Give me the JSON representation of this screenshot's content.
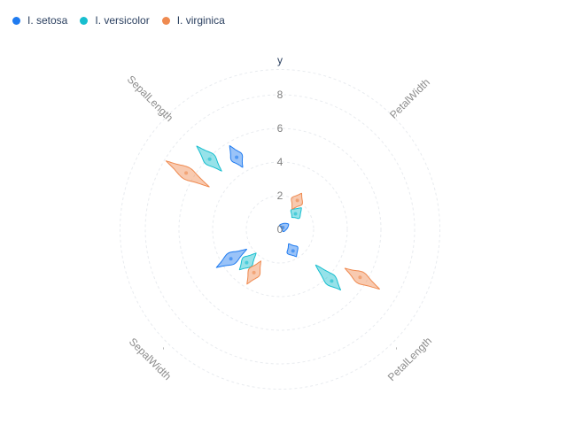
{
  "chart_data": {
    "type": "polar-violin",
    "title": "",
    "radial_axis": {
      "title": "y",
      "range": [
        0,
        8
      ],
      "ticks": [
        0,
        2,
        4,
        6,
        8
      ],
      "grid": true
    },
    "angular_axis": {
      "categories": [
        "PetalWidth",
        "PetalLength",
        "SepalWidth",
        "SepalLength"
      ]
    },
    "legend": {
      "placement": "top-left",
      "orientation": "horizontal"
    },
    "series": [
      {
        "name": "I. setosa",
        "color": "#1f7bf0",
        "values": {
          "PetalWidth": {
            "min": 0.1,
            "q1": 0.2,
            "median": 0.2,
            "q3": 0.3,
            "max": 0.6
          },
          "PetalLength": {
            "min": 1.0,
            "q1": 1.4,
            "median": 1.5,
            "q3": 1.6,
            "max": 1.9
          },
          "SepalWidth": {
            "min": 2.3,
            "q1": 3.2,
            "median": 3.4,
            "q3": 3.7,
            "max": 4.4
          },
          "SepalLength": {
            "min": 4.3,
            "q1": 4.8,
            "median": 5.0,
            "q3": 5.2,
            "max": 5.8
          }
        }
      },
      {
        "name": "I. versicolor",
        "color": "#17becf",
        "values": {
          "PetalWidth": {
            "min": 1.0,
            "q1": 1.2,
            "median": 1.3,
            "q3": 1.5,
            "max": 1.8
          },
          "PetalLength": {
            "min": 3.0,
            "q1": 4.0,
            "median": 4.35,
            "q3": 4.6,
            "max": 5.1
          },
          "SepalWidth": {
            "min": 2.0,
            "q1": 2.5,
            "median": 2.8,
            "q3": 3.0,
            "max": 3.4
          },
          "SepalLength": {
            "min": 4.9,
            "q1": 5.6,
            "median": 5.9,
            "q3": 6.3,
            "max": 7.0
          }
        }
      },
      {
        "name": "I. virginica",
        "color": "#ef8a50",
        "values": {
          "PetalWidth": {
            "min": 1.4,
            "q1": 1.8,
            "median": 2.0,
            "q3": 2.3,
            "max": 2.5
          },
          "PetalLength": {
            "min": 4.5,
            "q1": 5.1,
            "median": 5.55,
            "q3": 5.9,
            "max": 6.9
          },
          "SepalWidth": {
            "min": 2.2,
            "q1": 2.8,
            "median": 3.0,
            "q3": 3.2,
            "max": 3.8
          },
          "SepalLength": {
            "min": 4.9,
            "q1": 6.2,
            "median": 6.5,
            "q3": 6.9,
            "max": 7.9
          }
        }
      }
    ]
  }
}
